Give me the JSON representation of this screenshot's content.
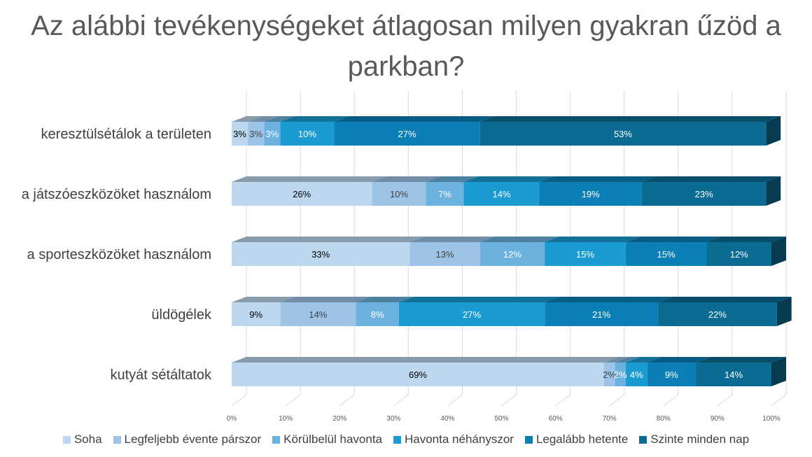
{
  "chart_data": {
    "type": "bar",
    "orientation": "horizontal",
    "stacked": "percent",
    "title": "Az alábbi tevékenységeket átlagosan milyen gyakran űzöd a parkban?",
    "categories": [
      "keresztülsétálok a területen",
      "a játszóeszközöket használom",
      "a sporteszközöket használom",
      "üldögélek",
      "kutyát sétáltatok"
    ],
    "series": [
      {
        "name": "Soha",
        "color": "#BDD7EE",
        "values": [
          3,
          26,
          33,
          9,
          69
        ],
        "labels": [
          "3%",
          "26%",
          "33%",
          "9%",
          "69%"
        ]
      },
      {
        "name": "Legfeljebb évente párszor",
        "color": "#9DC3E6",
        "values": [
          3,
          10,
          13,
          14,
          2
        ],
        "labels": [
          "3%",
          "10%",
          "13%",
          "14%",
          "2%"
        ]
      },
      {
        "name": "Körülbelül havonta",
        "color": "#6CB2DE",
        "values": [
          3,
          7,
          12,
          8,
          2
        ],
        "labels": [
          "3%",
          "7%",
          "12%",
          "8%",
          "2%"
        ]
      },
      {
        "name": "Havonta néhányszor",
        "color": "#1A9CD3",
        "values": [
          10,
          14,
          15,
          27,
          4
        ],
        "labels": [
          "10%",
          "14%",
          "15%",
          "27%",
          "4%"
        ]
      },
      {
        "name": "Legalább hetente",
        "color": "#0C80B6",
        "values": [
          27,
          19,
          15,
          21,
          9
        ],
        "labels": [
          "27%",
          "19%",
          "15%",
          "21%",
          "9%"
        ]
      },
      {
        "name": "Szinte minden nap",
        "color": "#0B6C93",
        "values": [
          53,
          23,
          12,
          22,
          14
        ],
        "labels": [
          "53%",
          "23%",
          "12%",
          "22%",
          "14%"
        ]
      }
    ],
    "xlim": [
      0,
      100
    ],
    "xticks": [
      "0%",
      "10%",
      "20%",
      "30%",
      "40%",
      "50%",
      "60%",
      "70%",
      "80%",
      "90%",
      "100%"
    ],
    "grid": true,
    "legend_position": "bottom",
    "style": "3d"
  }
}
